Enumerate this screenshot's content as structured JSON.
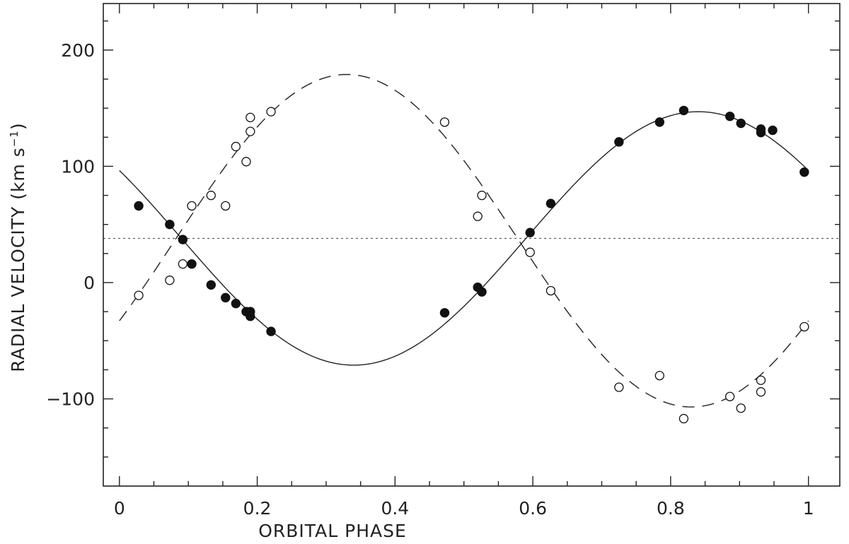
{
  "chart_data": {
    "type": "scatter",
    "xlabel": "ORBITAL PHASE",
    "ylabel": "RADIAL VELOCITY (km s",
    "ylabel_sup": "−1",
    "ylabel_close": ")",
    "xlim": [
      -0.0234,
      1.0455
    ],
    "ylim": [
      -175,
      240
    ],
    "x_ticks": [
      0,
      0.2,
      0.4,
      0.6,
      0.8,
      1
    ],
    "x_tick_labels": [
      "0",
      "0.2",
      "0.4",
      "0.6",
      "0.8",
      "1"
    ],
    "y_ticks": [
      -100,
      0,
      100,
      200
    ],
    "y_tick_labels": [
      "−100",
      "0",
      "100",
      "200"
    ],
    "systemic_velocity": 38,
    "grid": false,
    "series": [
      {
        "marker": "filled-circle",
        "x": [
          0.028,
          0.073,
          0.092,
          0.105,
          0.133,
          0.154,
          0.169,
          0.184,
          0.19,
          0.19,
          0.22,
          0.472,
          0.52,
          0.526,
          0.596,
          0.626,
          0.725,
          0.784,
          0.819,
          0.886,
          0.902,
          0.931,
          0.931,
          0.948,
          0.994
        ],
        "y": [
          66,
          50,
          37,
          16,
          -2,
          -13,
          -18,
          -25,
          -25,
          -29,
          -42,
          -26,
          -4,
          -8,
          43,
          68,
          121,
          138,
          148,
          143,
          137,
          132,
          129,
          131,
          95
        ]
      },
      {
        "marker": "open-circle",
        "x": [
          0.028,
          0.073,
          0.092,
          0.105,
          0.133,
          0.154,
          0.169,
          0.184,
          0.19,
          0.19,
          0.22,
          0.472,
          0.52,
          0.526,
          0.596,
          0.626,
          0.725,
          0.784,
          0.819,
          0.886,
          0.902,
          0.931,
          0.931,
          0.994
        ],
        "y": [
          -11,
          2,
          16,
          66,
          75,
          66,
          117,
          104,
          130,
          142,
          147,
          138,
          57,
          75,
          26,
          -7,
          -90,
          -80,
          -117,
          -98,
          -108,
          -84,
          -94,
          -38
        ]
      }
    ],
    "fits": [
      {
        "style": "solid",
        "gamma": 38,
        "K": 109,
        "phase_max": 0.84
      },
      {
        "style": "dashed",
        "gamma": 36,
        "K": 143,
        "phase_max": 0.33
      }
    ]
  }
}
